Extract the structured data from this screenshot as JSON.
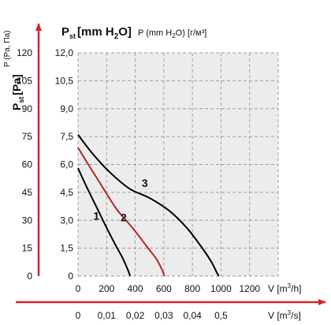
{
  "chart_data": {
    "type": "line",
    "y_axis_title": {
      "main": "P",
      "sub": "st",
      "unit": "[mm H",
      "unit_sub": "2",
      "unit_end": "O]"
    },
    "y_axis_alt_title": {
      "main": "P",
      "sub": "st",
      "unit": "[Pa]"
    },
    "y_axis_extra_label": "P (Pa, Па)",
    "y_axis_extra_label2": {
      "pre": "P (mm H",
      "sub": "2",
      "post": "O) [г/м³]"
    },
    "y_left_ticks": [
      "0",
      "15",
      "30",
      "45",
      "60",
      "75",
      "90",
      "105",
      "120"
    ],
    "y_right_ticks": [
      "0",
      "1,5",
      "3,0",
      "4,5",
      "6,0",
      "7,5",
      "9,0",
      "10,5",
      "12,0"
    ],
    "ylim_mm": [
      0,
      12
    ],
    "x_ticks_m3h": [
      "0",
      "200",
      "400",
      "600",
      "800",
      "1000",
      "1200"
    ],
    "x_ticks_m3s": [
      "0",
      "0,01",
      "0,02",
      "0,03",
      "0,04",
      "0,5"
    ],
    "xlim_m3h": [
      0,
      1400
    ],
    "xlabel_m3h": {
      "pre": "V [m",
      "sup": "3",
      "post": "/h]"
    },
    "xlabel_m3s": {
      "pre": "V [m",
      "sup": "3",
      "post": "/s]"
    },
    "series": [
      {
        "label": "1",
        "color": "#000000",
        "x": [
          0,
          60,
          130,
          200,
          260,
          310,
          345,
          365
        ],
        "y": [
          5.8,
          4.8,
          3.7,
          2.6,
          1.7,
          1.0,
          0.4,
          0.0
        ]
      },
      {
        "label": "2",
        "color": "#b5252a",
        "x": [
          0,
          80,
          170,
          270,
          380,
          480,
          550,
          590,
          605
        ],
        "y": [
          6.9,
          5.9,
          4.8,
          3.6,
          2.6,
          1.6,
          0.9,
          0.3,
          0.0
        ]
      },
      {
        "label": "3",
        "color": "#000000",
        "x": [
          0,
          100,
          220,
          360,
          500,
          640,
          760,
          860,
          930,
          970,
          985
        ],
        "y": [
          7.6,
          6.6,
          5.6,
          4.7,
          4.2,
          3.5,
          2.6,
          1.6,
          0.8,
          0.2,
          0.0
        ]
      }
    ],
    "grid": true
  }
}
